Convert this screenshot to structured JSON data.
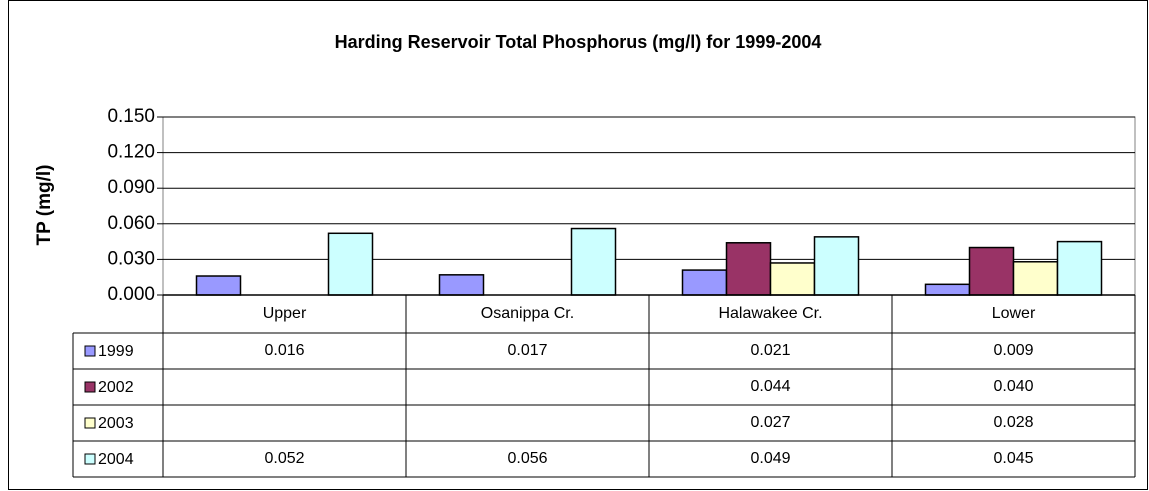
{
  "chart_data": {
    "type": "bar",
    "title": "Harding Reservoir Total Phosphorus (mg/l) for 1999-2004",
    "y_label": "TP (mg/l)",
    "categories": [
      "Upper",
      "Osanippa Cr.",
      "Halawakee Cr.",
      "Lower"
    ],
    "series": [
      {
        "name": "1999",
        "color": "#9999ff",
        "values": [
          0.016,
          0.017,
          0.021,
          0.009
        ],
        "value_labels": [
          "0.016",
          "0.017",
          "0.021",
          "0.009"
        ]
      },
      {
        "name": "2002",
        "color": "#993366",
        "values": [
          null,
          null,
          0.044,
          0.04
        ],
        "value_labels": [
          null,
          null,
          "0.044",
          "0.040"
        ]
      },
      {
        "name": "2003",
        "color": "#ffffcc",
        "values": [
          null,
          null,
          0.027,
          0.028
        ],
        "value_labels": [
          null,
          null,
          "0.027",
          "0.028"
        ]
      },
      {
        "name": "2004",
        "color": "#ccffff",
        "values": [
          0.052,
          0.056,
          0.049,
          0.045
        ],
        "value_labels": [
          "0.052",
          "0.056",
          "0.049",
          "0.045"
        ]
      }
    ],
    "ylim": [
      0,
      0.15
    ],
    "yticks": [
      {
        "value": 0,
        "label": "0.000"
      },
      {
        "value": 0.03,
        "label": "0.030"
      },
      {
        "value": 0.06,
        "label": "0.060"
      },
      {
        "value": 0.09,
        "label": "0.090"
      },
      {
        "value": 0.12,
        "label": "0.120"
      },
      {
        "value": 0.15,
        "label": "0.150"
      }
    ],
    "grid": true
  }
}
